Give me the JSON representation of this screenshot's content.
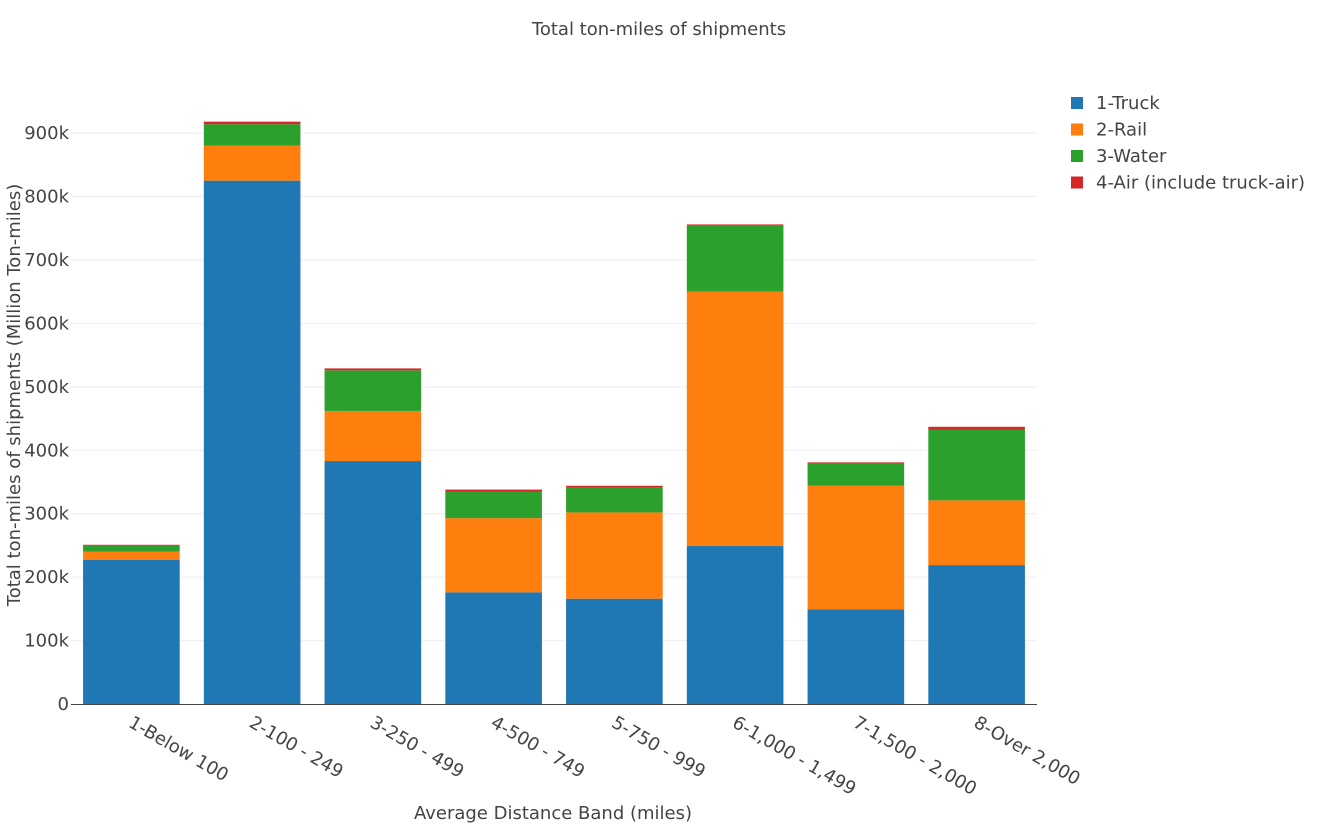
{
  "chart_data": {
    "type": "bar",
    "stacked": true,
    "title": "Total ton-miles of shipments",
    "xlabel": "Average Distance Band (miles)",
    "ylabel": "Total ton-miles of shipments (Million Ton-miles)",
    "ylim": [
      0,
      960000
    ],
    "yticks": [
      0,
      100000,
      200000,
      300000,
      400000,
      500000,
      600000,
      700000,
      800000,
      900000
    ],
    "ytick_labels": [
      "0",
      "100k",
      "200k",
      "300k",
      "400k",
      "500k",
      "600k",
      "700k",
      "800k",
      "900k"
    ],
    "grid": true,
    "legend_position": "top-right",
    "categories": [
      "1-Below 100",
      "2-100 - 249",
      "3-250 - 499",
      "4-500 - 749",
      "5-750 - 999",
      "6-1,000 - 1,499",
      "7-1,500 - 2,000",
      "8-Over 2,000"
    ],
    "series": [
      {
        "name": "1-Truck",
        "color": "#1f77b4",
        "values": [
          227000,
          825000,
          383000,
          176000,
          166000,
          249000,
          149000,
          219000
        ]
      },
      {
        "name": "2-Rail",
        "color": "#ff7f0e",
        "values": [
          13000,
          55000,
          79000,
          117000,
          136000,
          401000,
          195000,
          102000
        ]
      },
      {
        "name": "3-Water",
        "color": "#2ca02c",
        "values": [
          10000,
          34000,
          64000,
          42000,
          39000,
          104000,
          36000,
          111000
        ]
      },
      {
        "name": "4-Air (include truck-air)",
        "color": "#d62728",
        "values": [
          1000,
          4000,
          3000,
          3000,
          3000,
          2000,
          1000,
          5000
        ]
      }
    ]
  }
}
